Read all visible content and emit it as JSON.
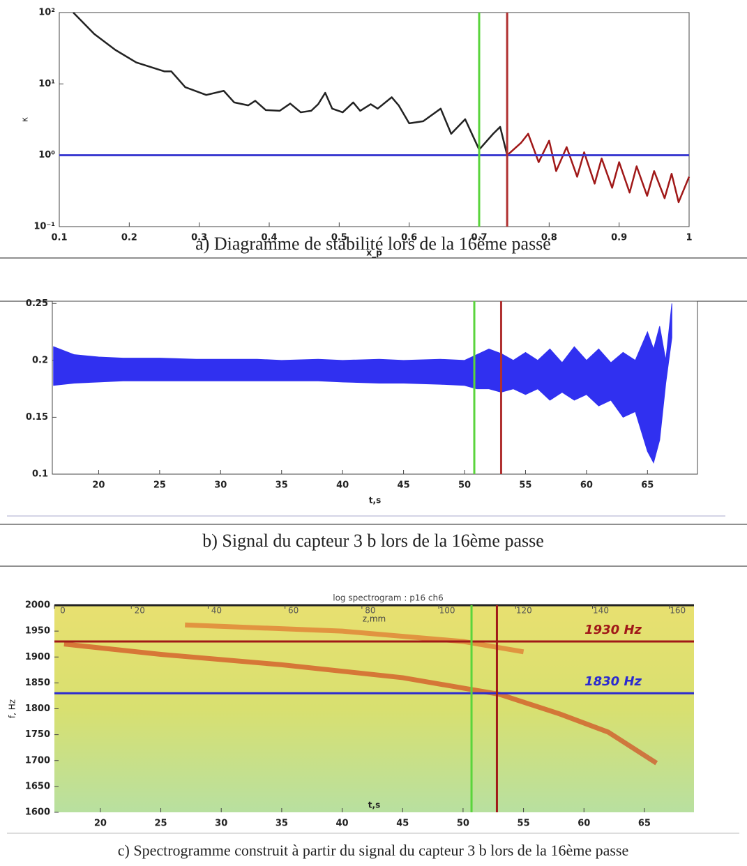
{
  "chart_data": [
    {
      "type": "line",
      "caption": "a) Diagramme de stabilité lors de la 16ème passe",
      "xlabel": "x_p",
      "ylabel": "κ",
      "ylog": true,
      "xlim": [
        0.1,
        1
      ],
      "xticks": [
        0.1,
        0.2,
        0.3,
        0.4,
        0.5,
        0.6,
        0.7,
        0.8,
        0.9,
        1
      ],
      "ylim": [
        0.1,
        100
      ],
      "yticks": [
        {
          "value": 0.1,
          "label": "10⁻¹"
        },
        {
          "value": 1,
          "label": "10⁰"
        },
        {
          "value": 10,
          "label": "10¹"
        },
        {
          "value": 100,
          "label": "10²"
        }
      ],
      "series": [
        {
          "color": "#222222",
          "x": [
            0.12,
            0.15,
            0.18,
            0.21,
            0.25,
            0.26,
            0.28,
            0.31,
            0.335,
            0.35,
            0.37,
            0.38,
            0.395,
            0.415,
            0.43,
            0.445,
            0.46,
            0.47,
            0.48,
            0.49,
            0.505,
            0.52,
            0.53,
            0.545,
            0.555,
            0.575,
            0.585,
            0.6,
            0.62,
            0.645,
            0.66,
            0.68,
            0.7,
            0.72,
            0.73,
            0.74
          ],
          "values": [
            100,
            50,
            30,
            20,
            15,
            15,
            9,
            7,
            8,
            5.5,
            5,
            5.8,
            4.3,
            4.2,
            5.3,
            4,
            4.2,
            5.2,
            7.5,
            4.5,
            4,
            5.5,
            4.2,
            5.2,
            4.5,
            6.5,
            5,
            2.8,
            3,
            4.5,
            2,
            3.2,
            1.2,
            2,
            2.5,
            1
          ]
        },
        {
          "color": "#a01818",
          "x": [
            0.74,
            0.76,
            0.77,
            0.785,
            0.8,
            0.81,
            0.825,
            0.84,
            0.85,
            0.865,
            0.875,
            0.89,
            0.9,
            0.915,
            0.925,
            0.94,
            0.95,
            0.965,
            0.975,
            0.985,
            1
          ],
          "values": [
            1,
            1.5,
            2,
            0.8,
            1.6,
            0.6,
            1.3,
            0.5,
            1.1,
            0.4,
            0.9,
            0.35,
            0.8,
            0.3,
            0.7,
            0.27,
            0.6,
            0.25,
            0.55,
            0.22,
            0.5
          ]
        }
      ],
      "vlines": [
        {
          "value": 0.7,
          "color": "#5ad43c"
        },
        {
          "value": 0.74,
          "color": "#b03030"
        }
      ],
      "hlines": [
        {
          "value": 1,
          "color": "#3a3ad0"
        }
      ]
    },
    {
      "type": "band",
      "caption": "b) Signal du capteur 3 b lors de la 16ème passe",
      "xlabel": "t,s",
      "xlim": [
        16.2,
        69.1
      ],
      "xticks": [
        20,
        25,
        30,
        35,
        40,
        45,
        50,
        55,
        60,
        65
      ],
      "ylim": [
        0.1,
        0.252
      ],
      "yticks": [
        0.1,
        0.15,
        0.2,
        0.25
      ],
      "color": "#3030f0",
      "x": [
        16.3,
        18,
        20,
        22,
        25,
        28,
        30,
        33,
        35,
        38,
        40,
        43,
        45,
        48,
        50,
        51,
        52,
        53,
        54,
        55,
        56,
        57,
        58,
        59,
        60,
        61,
        62,
        63,
        64,
        65,
        65.5,
        66,
        66.5,
        67
      ],
      "upper": [
        0.212,
        0.205,
        0.203,
        0.202,
        0.202,
        0.201,
        0.201,
        0.201,
        0.2,
        0.201,
        0.2,
        0.201,
        0.2,
        0.201,
        0.2,
        0.205,
        0.21,
        0.206,
        0.2,
        0.207,
        0.2,
        0.21,
        0.198,
        0.212,
        0.2,
        0.21,
        0.198,
        0.207,
        0.2,
        0.225,
        0.21,
        0.23,
        0.2,
        0.25
      ],
      "lower": [
        0.178,
        0.18,
        0.181,
        0.182,
        0.182,
        0.182,
        0.182,
        0.182,
        0.182,
        0.182,
        0.181,
        0.18,
        0.18,
        0.179,
        0.178,
        0.175,
        0.175,
        0.172,
        0.175,
        0.17,
        0.175,
        0.165,
        0.172,
        0.165,
        0.17,
        0.16,
        0.165,
        0.15,
        0.155,
        0.12,
        0.11,
        0.13,
        0.18,
        0.22
      ],
      "vlines": [
        {
          "value": 50.8,
          "color": "#5ad43c"
        },
        {
          "value": 53,
          "color": "#b03030"
        }
      ]
    },
    {
      "type": "spectrogram",
      "title": "log spectrogram :  p16 ch6",
      "caption": "c) Spectrogramme construit à partir du signal du capteur 3 b lors de la 16ème passe",
      "xlabel": "t,s",
      "ylabel": "f, Hz",
      "x2label": "z,mm",
      "xlim": [
        16.2,
        69.1
      ],
      "xticks": [
        20,
        25,
        30,
        35,
        40,
        45,
        50,
        55,
        60,
        65
      ],
      "x2lim": [
        0,
        166.4
      ],
      "x2ticks": [
        0,
        20,
        40,
        60,
        80,
        100,
        120,
        140,
        160
      ],
      "ylim": [
        1600,
        2000
      ],
      "yticks": [
        1600,
        1650,
        1700,
        1750,
        1800,
        1850,
        1900,
        1950,
        2000
      ],
      "series": [
        {
          "color": "#d03010",
          "x": [
            17,
            25,
            35,
            45,
            50,
            53,
            58,
            62,
            66
          ],
          "values": [
            1925,
            1905,
            1885,
            1860,
            1840,
            1828,
            1790,
            1755,
            1695
          ]
        },
        {
          "color": "#e06020",
          "x": [
            27,
            40,
            50,
            55
          ],
          "values": [
            1962,
            1950,
            1930,
            1910
          ]
        }
      ],
      "vlines": [
        {
          "value": 50.7,
          "color": "#5ad43c"
        },
        {
          "value": 52.8,
          "color": "#a01818"
        }
      ],
      "hlines": [
        {
          "value": 1930,
          "color": "#a01818",
          "label": "1930 Hz"
        },
        {
          "value": 1830,
          "color": "#2a2ad0",
          "label": "1830 Hz"
        }
      ]
    }
  ]
}
